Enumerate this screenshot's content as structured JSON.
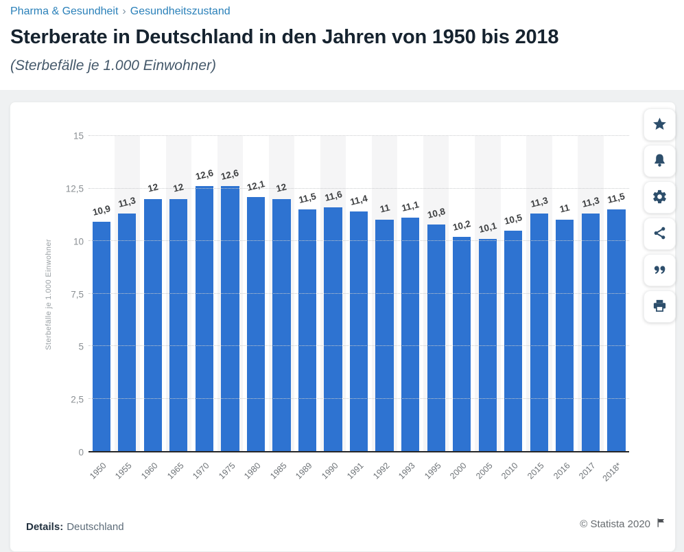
{
  "breadcrumb": {
    "items": [
      "Pharma & Gesundheit",
      "Gesundheitszustand"
    ],
    "separator": "›"
  },
  "title": "Sterberate in Deutschland in den Jahren von 1950 bis 2018",
  "subtitle": "(Sterbefälle je 1.000 Einwohner)",
  "chart_data": {
    "type": "bar",
    "categories": [
      "1950",
      "1955",
      "1960",
      "1965",
      "1970",
      "1975",
      "1980",
      "1985",
      "1989",
      "1990",
      "1991",
      "1992",
      "1993",
      "1995",
      "2000",
      "2005",
      "2010",
      "2015",
      "2016",
      "2017",
      "2018*"
    ],
    "values": [
      10.9,
      11.3,
      12,
      12,
      12.6,
      12.6,
      12.1,
      12,
      11.5,
      11.6,
      11.4,
      11,
      11.1,
      10.8,
      10.2,
      10.1,
      10.5,
      11.3,
      11,
      11.3,
      11.5
    ],
    "value_labels": [
      "10,9",
      "11,3",
      "12",
      "12",
      "12,6",
      "12,6",
      "12,1",
      "12",
      "11,5",
      "11,6",
      "11,4",
      "11",
      "11,1",
      "10,8",
      "10,2",
      "10,1",
      "10,5",
      "11,3",
      "11",
      "11,3",
      "11,5"
    ],
    "title": "Sterberate in Deutschland in den Jahren von 1950 bis 2018",
    "xlabel": "",
    "ylabel": "Sterbefälle je 1.000 Einwohner",
    "ylim": [
      0,
      15
    ],
    "ytick_values": [
      0,
      2.5,
      5,
      7.5,
      10,
      12.5,
      15
    ],
    "ytick_labels": [
      "0",
      "2,5",
      "5",
      "7,5",
      "10",
      "12,5",
      "15"
    ],
    "grid": true,
    "legend": false,
    "bar_color": "#2e73d1",
    "stripe_color": "#f5f5f6",
    "stripe_indices": [
      1,
      3,
      5,
      7,
      9,
      11,
      13,
      15,
      17,
      19
    ]
  },
  "toolbar": {
    "buttons": [
      {
        "name": "favorite",
        "label": "Favorit"
      },
      {
        "name": "notification",
        "label": "Benachrichtigung"
      },
      {
        "name": "settings",
        "label": "Einstellungen"
      },
      {
        "name": "share",
        "label": "Teilen"
      },
      {
        "name": "cite",
        "label": "Zitieren"
      },
      {
        "name": "print",
        "label": "Drucken"
      }
    ]
  },
  "footer": {
    "details_label": "Details:",
    "details_value": "Deutschland",
    "copyright": "© Statista 2020"
  }
}
